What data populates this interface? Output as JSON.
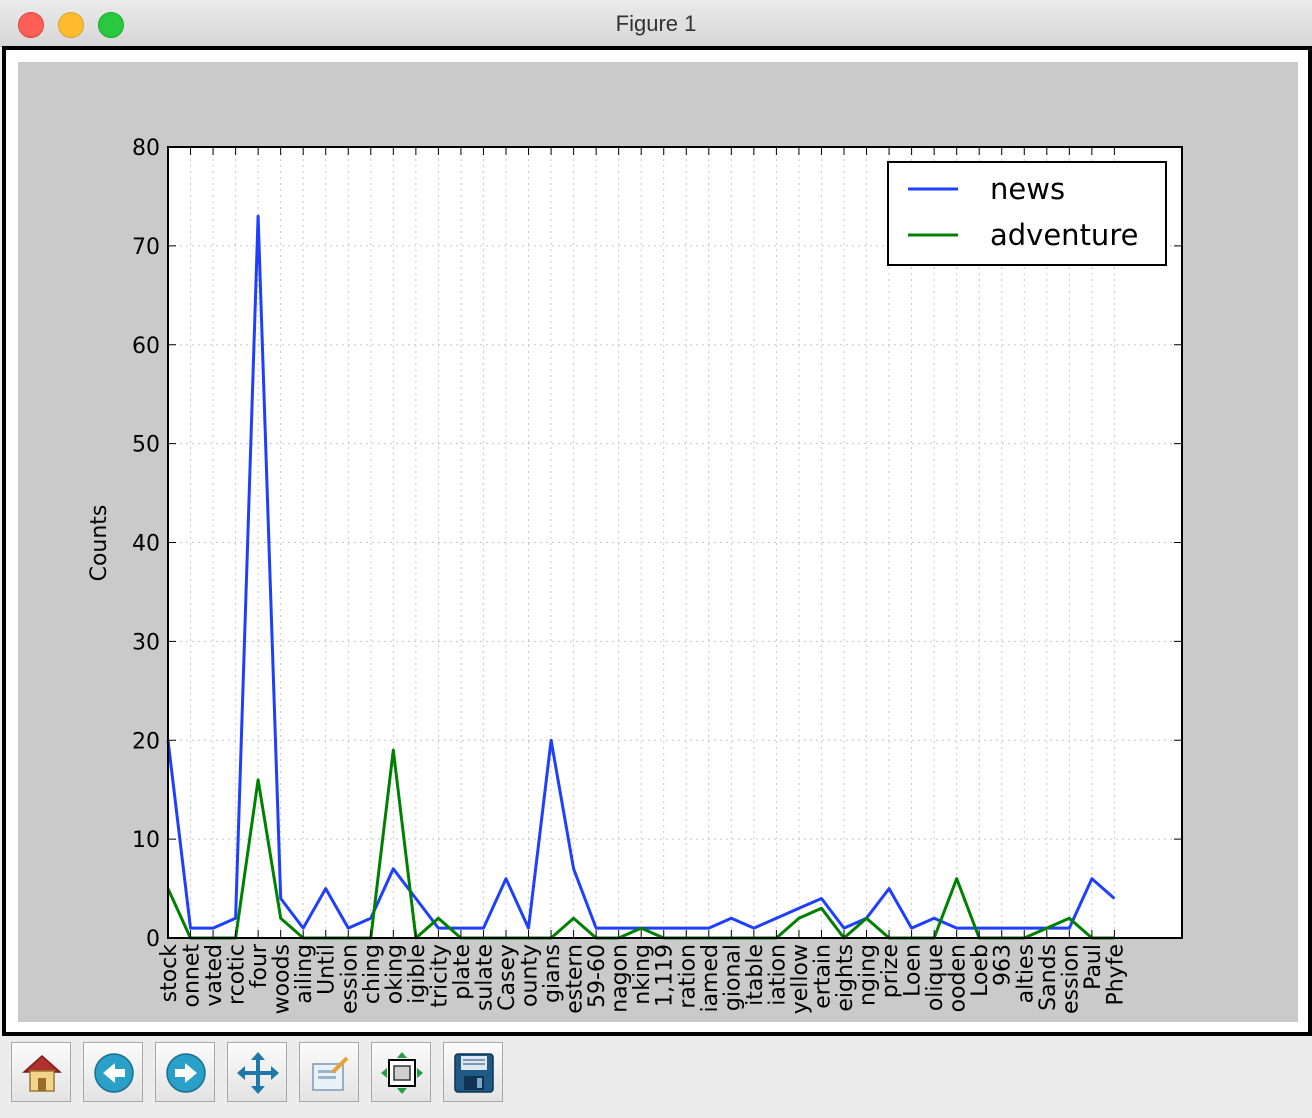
{
  "window": {
    "title": "Figure 1"
  },
  "toolbar": {
    "buttons": [
      {
        "name": "home-button",
        "icon": "home-icon"
      },
      {
        "name": "back-button",
        "icon": "back-arrow-icon"
      },
      {
        "name": "forward-button",
        "icon": "forward-arrow-icon"
      },
      {
        "name": "pan-button",
        "icon": "move-arrows-icon"
      },
      {
        "name": "zoom-button",
        "icon": "zoom-rect-icon"
      },
      {
        "name": "configure-subplots-button",
        "icon": "subplots-icon"
      },
      {
        "name": "save-button",
        "icon": "floppy-disk-icon"
      }
    ]
  },
  "chart_data": {
    "type": "line",
    "title": "",
    "xlabel": "",
    "ylabel": "Counts",
    "ylim": [
      0,
      80
    ],
    "yticks": [
      0,
      10,
      20,
      30,
      40,
      50,
      60,
      70,
      80
    ],
    "xlim": [
      0,
      45
    ],
    "grid": true,
    "legend": "top-right",
    "categories": [
      "stock",
      "onnet",
      "vated",
      "rcotic",
      "four",
      "woods",
      "ailing",
      "Until",
      "ession",
      "ching",
      "oking",
      "igible",
      "tricity",
      "plate",
      "sulate",
      "Casey",
      "ounty",
      "gians",
      "estern",
      "59-60",
      "nagon",
      "nking",
      "1,119",
      "ration",
      "iamed",
      "gional",
      "itable",
      "iation",
      "yellow",
      "ertain",
      "eights",
      "nging",
      "prize",
      "Loen",
      "olique",
      "ooden",
      "Loeb",
      "963",
      "alties",
      "Sands",
      "ession",
      "Paul",
      "Phyfe"
    ],
    "series": [
      {
        "name": "news",
        "color": "#1f3fff",
        "values": [
          20,
          1,
          1,
          2,
          73,
          4,
          1,
          5,
          1,
          2,
          7,
          4,
          1,
          1,
          1,
          6,
          1,
          20,
          7,
          1,
          1,
          1,
          1,
          1,
          1,
          2,
          1,
          2,
          3,
          4,
          1,
          2,
          5,
          1,
          2,
          1,
          1,
          1,
          1,
          1,
          1,
          6,
          4
        ]
      },
      {
        "name": "adventure",
        "color": "#008000",
        "values": [
          5,
          0,
          0,
          0,
          16,
          2,
          0,
          0,
          0,
          0,
          19,
          0,
          2,
          0,
          0,
          0,
          0,
          0,
          2,
          0,
          0,
          1,
          0,
          0,
          0,
          0,
          0,
          0,
          2,
          3,
          0,
          2,
          0,
          0,
          0,
          6,
          0,
          0,
          0,
          1,
          2,
          0,
          0
        ]
      }
    ]
  }
}
